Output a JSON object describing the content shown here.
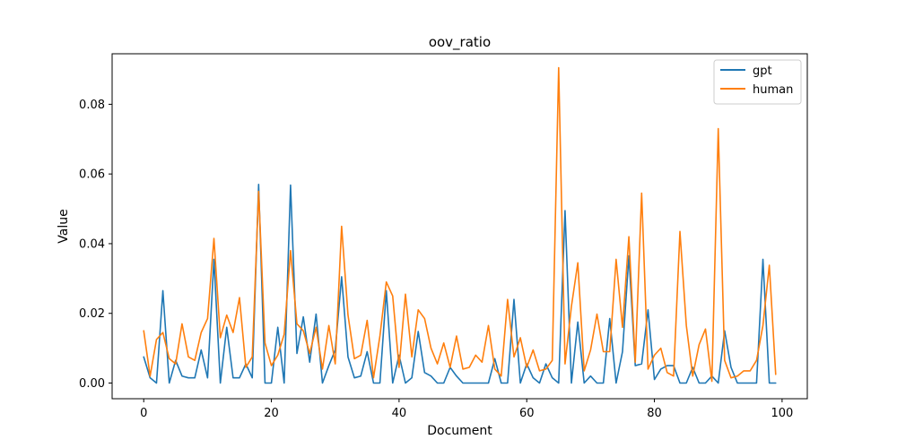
{
  "chart_data": {
    "type": "line",
    "title": "oov_ratio",
    "xlabel": "Document",
    "ylabel": "Value",
    "xlim": [
      -4.95,
      103.95
    ],
    "ylim": [
      -0.0045,
      0.0945
    ],
    "xticks": [
      0,
      20,
      40,
      60,
      80,
      100
    ],
    "xtick_labels": [
      "0",
      "20",
      "40",
      "60",
      "80",
      "100"
    ],
    "yticks": [
      0.0,
      0.02,
      0.04,
      0.06,
      0.08
    ],
    "ytick_labels": [
      "0.00",
      "0.02",
      "0.04",
      "0.06",
      "0.08"
    ],
    "grid": false,
    "legend_position": "top-right",
    "series": [
      {
        "name": "gpt",
        "color": "#1f77b4",
        "values": [
          0.0075,
          0.0015,
          0.0,
          0.0265,
          0.0,
          0.0065,
          0.002,
          0.0015,
          0.0015,
          0.0095,
          0.0015,
          0.0355,
          0.0,
          0.016,
          0.0015,
          0.0015,
          0.0055,
          0.0015,
          0.057,
          0.0,
          0.0,
          0.016,
          0.0,
          0.0568,
          0.0085,
          0.019,
          0.006,
          0.0198,
          0.0,
          0.005,
          0.0095,
          0.0305,
          0.0075,
          0.0015,
          0.002,
          0.009,
          0.0,
          0.0,
          0.0265,
          0.0,
          0.008,
          0.0,
          0.0015,
          0.0148,
          0.003,
          0.002,
          0.0,
          0.0,
          0.0045,
          0.002,
          0.0,
          0.0,
          0.0,
          0.0,
          0.0,
          0.007,
          0.0,
          0.0,
          0.024,
          0.0,
          0.0055,
          0.0015,
          0.0,
          0.0055,
          0.0015,
          0.0,
          0.0495,
          0.0,
          0.0175,
          0.0,
          0.002,
          0.0,
          0.0,
          0.0185,
          0.0,
          0.009,
          0.0365,
          0.005,
          0.0055,
          0.021,
          0.001,
          0.004,
          0.005,
          0.005,
          0.0,
          0.0,
          0.0045,
          0.0,
          0.0,
          0.002,
          0.0,
          0.015,
          0.0045,
          0.0,
          0.0,
          0.0,
          0.0,
          0.0355,
          0.0,
          0.0
        ],
        "x_start": 0
      },
      {
        "name": "human",
        "color": "#ff7f0e",
        "values": [
          0.015,
          0.002,
          0.0125,
          0.0145,
          0.007,
          0.0055,
          0.017,
          0.0075,
          0.0065,
          0.0145,
          0.0185,
          0.0415,
          0.013,
          0.0195,
          0.0145,
          0.0245,
          0.0045,
          0.0075,
          0.055,
          0.0115,
          0.005,
          0.008,
          0.014,
          0.038,
          0.017,
          0.015,
          0.0085,
          0.016,
          0.004,
          0.0165,
          0.0055,
          0.045,
          0.0195,
          0.007,
          0.008,
          0.018,
          0.0015,
          0.0135,
          0.029,
          0.025,
          0.0045,
          0.0255,
          0.0075,
          0.021,
          0.0185,
          0.01,
          0.0055,
          0.0115,
          0.0045,
          0.0135,
          0.004,
          0.0045,
          0.008,
          0.006,
          0.0165,
          0.004,
          0.002,
          0.024,
          0.0075,
          0.013,
          0.0045,
          0.0095,
          0.0035,
          0.004,
          0.0065,
          0.0905,
          0.0055,
          0.022,
          0.0345,
          0.0035,
          0.0095,
          0.0198,
          0.009,
          0.009,
          0.0355,
          0.016,
          0.042,
          0.006,
          0.0545,
          0.004,
          0.008,
          0.01,
          0.003,
          0.002,
          0.0435,
          0.0165,
          0.002,
          0.011,
          0.0155,
          0.0005,
          0.073,
          0.0065,
          0.0015,
          0.002,
          0.0035,
          0.0035,
          0.0065,
          0.0165,
          0.0338,
          0.0025
        ],
        "x_start": 0
      }
    ]
  }
}
